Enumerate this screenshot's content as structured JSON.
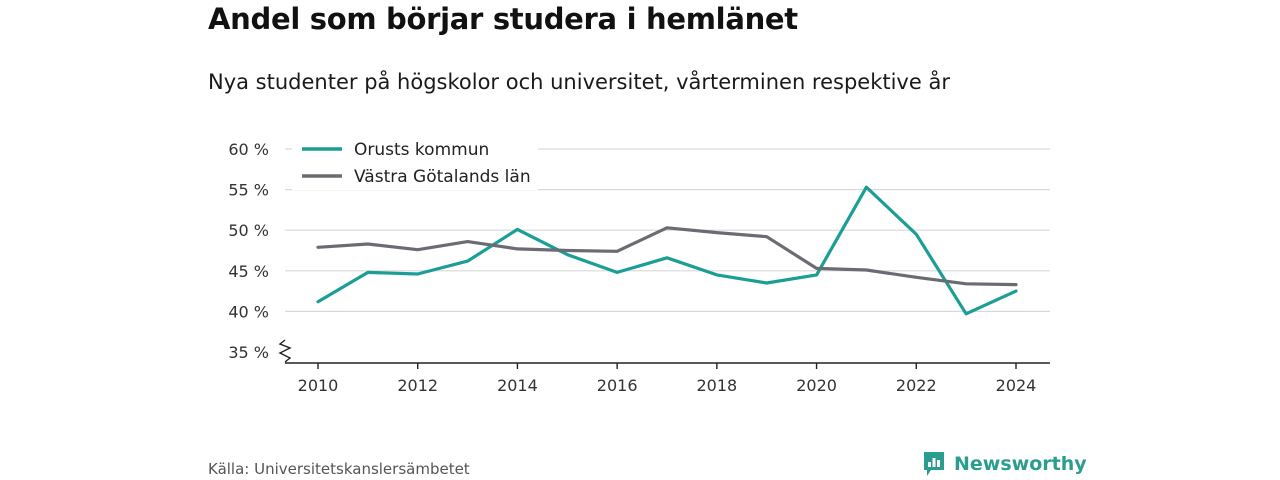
{
  "title": "Andel som börjar studera i hemlänet",
  "subtitle": "Nya studenter på högskolor och universitet, vårterminen respektive år",
  "source": "Källa: Universitetskanslersämbetet",
  "brand": "Newsworthy",
  "colors": {
    "orust": "#1a9e96",
    "vg": "#6b6b73",
    "grid": "#d9d9d9",
    "brand": "#2a9d8f"
  },
  "chart_data": {
    "type": "line",
    "x": [
      2010,
      2011,
      2012,
      2013,
      2014,
      2015,
      2016,
      2017,
      2018,
      2019,
      2020,
      2021,
      2022,
      2023,
      2024
    ],
    "xticks": [
      "2010",
      "2012",
      "2014",
      "2016",
      "2018",
      "2020",
      "2022",
      "2024"
    ],
    "yticks": [
      "35 %",
      "40 %",
      "45 %",
      "50 %",
      "55 %",
      "60 %"
    ],
    "ylim": [
      35,
      60
    ],
    "ytick_values": [
      35,
      40,
      45,
      50,
      55,
      60
    ],
    "grid": true,
    "broken_axis": true,
    "legend_position": "top-left",
    "series": [
      {
        "name": "Orusts kommun",
        "color": "#1a9e96",
        "values": [
          41.2,
          44.8,
          44.6,
          46.2,
          50.1,
          47.0,
          44.8,
          46.6,
          44.5,
          43.5,
          44.5,
          55.3,
          49.5,
          39.7,
          42.5
        ]
      },
      {
        "name": "Västra Götalands län",
        "color": "#6b6b73",
        "values": [
          47.9,
          48.3,
          47.6,
          48.6,
          47.7,
          47.5,
          47.4,
          50.3,
          49.7,
          49.2,
          45.3,
          45.1,
          44.2,
          43.4,
          43.3
        ]
      }
    ]
  }
}
